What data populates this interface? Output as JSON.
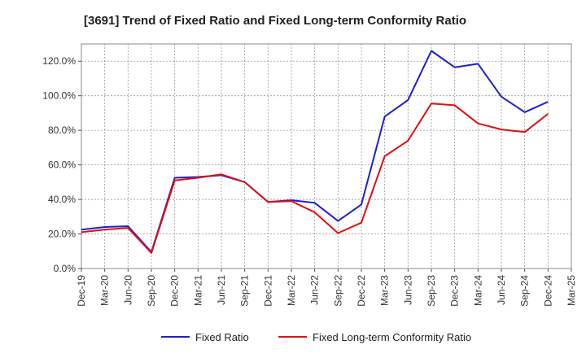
{
  "chart_data": {
    "type": "line",
    "title": "[3691]  Trend of Fixed Ratio and Fixed Long-term Conformity Ratio",
    "xlabel": "",
    "ylabel": "",
    "categories": [
      "Dec-19",
      "Mar-20",
      "Jun-20",
      "Sep-20",
      "Dec-20",
      "Mar-21",
      "Jun-21",
      "Sep-21",
      "Dec-21",
      "Mar-22",
      "Jun-22",
      "Sep-22",
      "Dec-22",
      "Mar-23",
      "Jun-23",
      "Sep-23",
      "Dec-23",
      "Mar-24",
      "Jun-24",
      "Sep-24",
      "Dec-24",
      "Mar-25"
    ],
    "y_ticks": [
      "0.0%",
      "20.0%",
      "40.0%",
      "60.0%",
      "80.0%",
      "100.0%",
      "120.0%"
    ],
    "ylim": [
      0,
      130
    ],
    "grid": true,
    "legend_position": "bottom",
    "series": [
      {
        "name": "Fixed Ratio",
        "color": "#1f1fcc",
        "values": [
          22.5,
          24.0,
          24.5,
          9.5,
          52.5,
          53.0,
          54.0,
          50.0,
          38.5,
          39.5,
          38.0,
          27.5,
          37.0,
          88.0,
          97.5,
          126.0,
          116.5,
          118.5,
          99.5,
          90.5,
          96.5,
          null
        ]
      },
      {
        "name": "Fixed Long-term Conformity Ratio",
        "color": "#e01010",
        "values": [
          21.0,
          22.5,
          23.5,
          9.0,
          51.0,
          52.5,
          54.5,
          50.0,
          38.5,
          39.0,
          32.5,
          20.5,
          26.5,
          65.0,
          74.0,
          95.5,
          94.5,
          84.0,
          80.5,
          79.0,
          89.5,
          null
        ]
      }
    ]
  }
}
